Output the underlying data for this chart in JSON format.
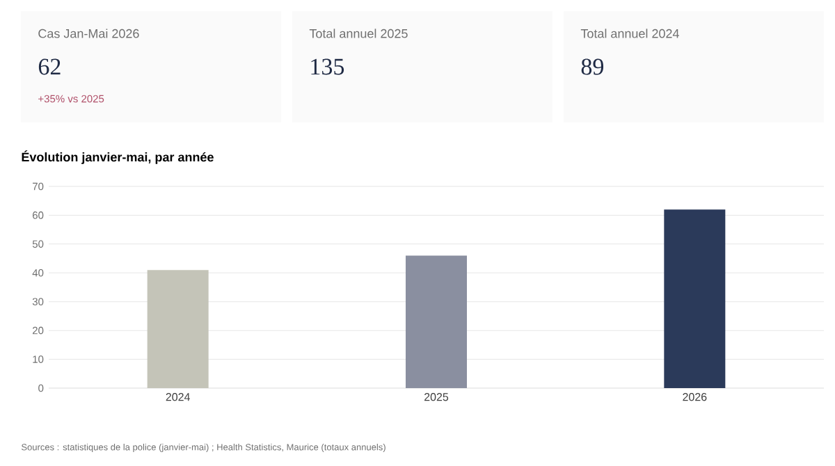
{
  "chart_data": [
    {
      "type": "other",
      "categories": [
        "Cas Jan-Mai 2026",
        "Total annuel 2025",
        "Total annuel 2024"
      ],
      "values": [
        62,
        135,
        89
      ],
      "data_labels": true,
      "annotations": [
        "+35% vs 2025"
      ]
    },
    {
      "type": "bar",
      "title": "Évolution janvier-mai, par année",
      "categories": [
        "2024",
        "2025",
        "2026"
      ],
      "values": [
        41,
        46,
        62
      ],
      "colors": [
        "#c4c4b8",
        "#8a8fa0",
        "#2b3a5a"
      ],
      "ylim": [
        0,
        70
      ],
      "yticks": [
        0,
        10,
        20,
        30,
        40,
        50,
        60,
        70
      ],
      "grid": "y",
      "annotations": [
        "Sources : statistiques de la police (janvier-mai) ; Health Statistics, Maurice (totaux annuels)"
      ]
    }
  ]
}
